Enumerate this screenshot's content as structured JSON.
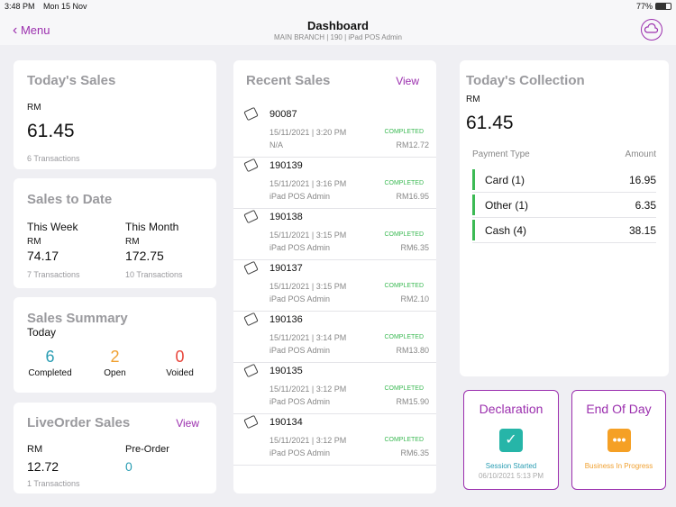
{
  "status_bar": {
    "time": "3:48 PM",
    "date": "Mon 15 Nov",
    "battery": "77%"
  },
  "nav": {
    "back": "Menu",
    "title": "Dashboard",
    "subtitle": "MAIN BRANCH | 190 | iPad POS Admin"
  },
  "todays_sales": {
    "title": "Today's Sales",
    "currency": "RM",
    "amount": "61.45",
    "transactions": "6 Transactions"
  },
  "sales_to_date": {
    "title": "Sales to Date",
    "periods": [
      {
        "label": "This Week",
        "currency": "RM",
        "amount": "74.17",
        "transactions": "7 Transactions"
      },
      {
        "label": "This Month",
        "currency": "RM",
        "amount": "172.75",
        "transactions": "10 Transactions"
      }
    ]
  },
  "sales_summary": {
    "title": "Sales Summary",
    "period": "Today",
    "stats": [
      {
        "value": "6",
        "label": "Completed",
        "color": "#2a9db3"
      },
      {
        "value": "2",
        "label": "Open",
        "color": "#f0a030"
      },
      {
        "value": "0",
        "label": "Voided",
        "color": "#e8463c"
      }
    ]
  },
  "live_order": {
    "title": "LiveOrder Sales",
    "action": "View",
    "currency": "RM",
    "amount": "12.72",
    "pre_order_label": "Pre-Order",
    "pre_order": "0",
    "transactions": "1 Transactions"
  },
  "recent_sales": {
    "title": "Recent Sales",
    "action": "View",
    "items": [
      {
        "id": "90087",
        "datetime": "15/11/2021 | 3:20 PM",
        "status": "COMPLETED",
        "staff": "N/A",
        "amount": "RM12.72"
      },
      {
        "id": "190139",
        "datetime": "15/11/2021 | 3:16 PM",
        "status": "COMPLETED",
        "staff": "iPad POS Admin",
        "amount": "RM16.95"
      },
      {
        "id": "190138",
        "datetime": "15/11/2021 | 3:15 PM",
        "status": "COMPLETED",
        "staff": "iPad POS Admin",
        "amount": "RM6.35"
      },
      {
        "id": "190137",
        "datetime": "15/11/2021 | 3:15 PM",
        "status": "COMPLETED",
        "staff": "iPad POS Admin",
        "amount": "RM2.10"
      },
      {
        "id": "190136",
        "datetime": "15/11/2021 | 3:14 PM",
        "status": "COMPLETED",
        "staff": "iPad POS Admin",
        "amount": "RM13.80"
      },
      {
        "id": "190135",
        "datetime": "15/11/2021 | 3:12 PM",
        "status": "COMPLETED",
        "staff": "iPad POS Admin",
        "amount": "RM15.90"
      },
      {
        "id": "190134",
        "datetime": "15/11/2021 | 3:12 PM",
        "status": "COMPLETED",
        "staff": "iPad POS Admin",
        "amount": "RM6.35"
      }
    ]
  },
  "collection": {
    "title": "Today's Collection",
    "currency": "RM",
    "amount": "61.45",
    "headers": [
      "Payment Type",
      "Amount"
    ],
    "rows": [
      {
        "type": "Card (1)",
        "amount": "16.95"
      },
      {
        "type": "Other (1)",
        "amount": "6.35"
      },
      {
        "type": "Cash (4)",
        "amount": "38.15"
      }
    ]
  },
  "declaration": {
    "title": "Declaration",
    "status": "Session Started",
    "date": "06/10/2021 5:13 PM"
  },
  "end_of_day": {
    "title": "End Of Day",
    "status": "Business In Progress"
  }
}
